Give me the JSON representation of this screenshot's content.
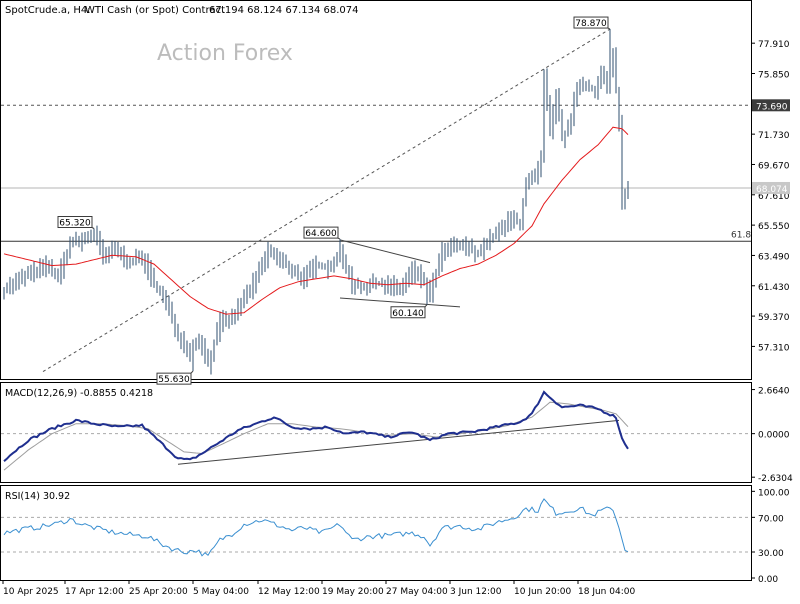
{
  "header": {
    "symbol": "SpotCrude.a, H4:",
    "description": "WTI Cash (or Spot) Contract",
    "ohlc": "67.194 68.124 67.134 68.074"
  },
  "watermark": "Action Forex",
  "colors": {
    "background": "#ffffff",
    "frame": "#000000",
    "price_bars": "#2f4f6f",
    "moving_average": "#e41a1c",
    "macd_line": "#1f2f8f",
    "macd_signal": "#9e9e9e",
    "rsi_line": "#3a8fd0",
    "trendline": "#444444",
    "label_bg": "#3c3c3c"
  },
  "chart_data": [
    {
      "type": "ohlc",
      "title": "SpotCrude.a, H4: WTI Cash (or Spot) Contract",
      "ylim": [
        55.3,
        80.3
      ],
      "y_ticks": [
        "77.910",
        "75.850",
        "73.690",
        "71.730",
        "69.670",
        "67.610",
        "65.550",
        "63.490",
        "61.430",
        "59.370",
        "57.310"
      ],
      "x_ticks": [
        "10 Apr 2025",
        "17 Apr 12:00",
        "25 Apr 20:00",
        "5 May 04:00",
        "12 May 12:00",
        "19 May 20:00",
        "27 May 04:00",
        "3 Jun 12:00",
        "10 Jun 20:00",
        "18 Jun 04:00"
      ],
      "current_price": "68.074",
      "horizontal_levels": [
        {
          "value": 73.69,
          "label": "73.690",
          "style": "dashed"
        },
        {
          "value": 68.074,
          "label": "68.074",
          "style": "solid-gray"
        },
        {
          "value": 64.45,
          "label": "61.8",
          "style": "solid"
        }
      ],
      "swing_labels": [
        {
          "label": "78.870",
          "value": 78.87,
          "bar": 202
        },
        {
          "label": "65.320",
          "value": 65.32,
          "bar": 30
        },
        {
          "label": "64.600",
          "value": 64.6,
          "bar": 112
        },
        {
          "label": "60.140",
          "value": 60.14,
          "bar": 141
        },
        {
          "label": "55.630",
          "value": 55.63,
          "bar": 63
        }
      ],
      "series": [
        {
          "name": "Close",
          "anchors": [
            [
              0,
              61.2
            ],
            [
              8,
              62.2
            ],
            [
              14,
              62.8
            ],
            [
              18,
              62.0
            ],
            [
              22,
              64.3
            ],
            [
              26,
              64.5
            ],
            [
              30,
              65.0
            ],
            [
              33,
              63.4
            ],
            [
              37,
              63.9
            ],
            [
              42,
              63.0
            ],
            [
              46,
              63.4
            ],
            [
              50,
              61.6
            ],
            [
              54,
              60.2
            ],
            [
              58,
              58.1
            ],
            [
              62,
              57.0
            ],
            [
              65,
              57.9
            ],
            [
              68,
              56.1
            ],
            [
              72,
              59.0
            ],
            [
              76,
              59.2
            ],
            [
              80,
              60.6
            ],
            [
              84,
              61.9
            ],
            [
              88,
              63.8
            ],
            [
              92,
              63.1
            ],
            [
              96,
              62.5
            ],
            [
              100,
              61.9
            ],
            [
              104,
              62.9
            ],
            [
              108,
              62.6
            ],
            [
              112,
              63.7
            ],
            [
              116,
              61.6
            ],
            [
              120,
              61.3
            ],
            [
              124,
              61.6
            ],
            [
              128,
              61.5
            ],
            [
              132,
              61.2
            ],
            [
              136,
              62.5
            ],
            [
              139,
              62.0
            ],
            [
              142,
              60.9
            ],
            [
              146,
              63.7
            ],
            [
              150,
              64.1
            ],
            [
              154,
              64.1
            ],
            [
              158,
              63.6
            ],
            [
              161,
              64.4
            ],
            [
              165,
              65.1
            ],
            [
              169,
              66.0
            ],
            [
              172,
              65.7
            ],
            [
              174,
              68.5
            ],
            [
              177,
              68.7
            ],
            [
              179,
              70.0
            ],
            [
              180,
              75.5
            ],
            [
              182,
              72.0
            ],
            [
              184,
              74.2
            ],
            [
              186,
              71.5
            ],
            [
              188,
              72.0
            ],
            [
              190,
              73.9
            ],
            [
              192,
              75.2
            ],
            [
              194,
              75.0
            ],
            [
              197,
              74.7
            ],
            [
              199,
              75.8
            ],
            [
              201,
              75.2
            ],
            [
              203,
              77.0
            ],
            [
              205,
              72.5
            ],
            [
              206,
              67.0
            ],
            [
              208,
              68.1
            ]
          ]
        },
        {
          "name": "MA",
          "anchors": [
            [
              0,
              63.6
            ],
            [
              8,
              63.2
            ],
            [
              16,
              62.8
            ],
            [
              24,
              62.9
            ],
            [
              30,
              63.2
            ],
            [
              36,
              63.5
            ],
            [
              44,
              63.4
            ],
            [
              50,
              62.9
            ],
            [
              56,
              61.8
            ],
            [
              62,
              60.7
            ],
            [
              68,
              59.9
            ],
            [
              74,
              59.5
            ],
            [
              80,
              59.6
            ],
            [
              86,
              60.5
            ],
            [
              92,
              61.3
            ],
            [
              98,
              61.7
            ],
            [
              104,
              61.9
            ],
            [
              110,
              62.1
            ],
            [
              116,
              61.9
            ],
            [
              122,
              61.6
            ],
            [
              128,
              61.5
            ],
            [
              134,
              61.6
            ],
            [
              140,
              61.5
            ],
            [
              146,
              62.1
            ],
            [
              152,
              62.6
            ],
            [
              158,
              62.9
            ],
            [
              164,
              63.5
            ],
            [
              170,
              64.3
            ],
            [
              176,
              65.5
            ],
            [
              180,
              67.0
            ],
            [
              186,
              68.6
            ],
            [
              192,
              70.0
            ],
            [
              198,
              71.0
            ],
            [
              203,
              72.2
            ],
            [
              206,
              72.1
            ],
            [
              208,
              71.7
            ]
          ]
        }
      ]
    },
    {
      "type": "line",
      "title": "MACD(12,26,9) -0.8855 0.4218",
      "ylim": [
        -2.8,
        3.0
      ],
      "y_ticks": [
        "2.6640",
        "0.0000",
        "-2.6304"
      ],
      "series": [
        {
          "name": "MACD",
          "anchors": [
            [
              0,
              -1.6
            ],
            [
              8,
              -0.4
            ],
            [
              16,
              0.3
            ],
            [
              24,
              0.8
            ],
            [
              30,
              0.6
            ],
            [
              38,
              0.4
            ],
            [
              46,
              0.5
            ],
            [
              52,
              -0.5
            ],
            [
              58,
              -1.5
            ],
            [
              62,
              -1.6
            ],
            [
              66,
              -1.2
            ],
            [
              72,
              -0.5
            ],
            [
              78,
              0.2
            ],
            [
              84,
              0.6
            ],
            [
              90,
              1.0
            ],
            [
              96,
              0.4
            ],
            [
              102,
              0.3
            ],
            [
              108,
              0.4
            ],
            [
              114,
              0.0
            ],
            [
              120,
              0.1
            ],
            [
              128,
              -0.2
            ],
            [
              136,
              0.1
            ],
            [
              142,
              -0.4
            ],
            [
              148,
              0.0
            ],
            [
              156,
              0.1
            ],
            [
              164,
              0.4
            ],
            [
              172,
              0.7
            ],
            [
              176,
              1.2
            ],
            [
              180,
              2.5
            ],
            [
              186,
              1.6
            ],
            [
              192,
              1.7
            ],
            [
              198,
              1.5
            ],
            [
              204,
              1.0
            ],
            [
              206,
              -0.3
            ],
            [
              208,
              -0.88
            ]
          ]
        },
        {
          "name": "Signal",
          "anchors": [
            [
              0,
              -2.2
            ],
            [
              8,
              -1.0
            ],
            [
              16,
              0.0
            ],
            [
              24,
              0.6
            ],
            [
              32,
              0.6
            ],
            [
              40,
              0.5
            ],
            [
              48,
              0.3
            ],
            [
              54,
              -0.4
            ],
            [
              60,
              -1.1
            ],
            [
              66,
              -1.2
            ],
            [
              72,
              -0.7
            ],
            [
              80,
              0.0
            ],
            [
              88,
              0.6
            ],
            [
              96,
              0.6
            ],
            [
              104,
              0.4
            ],
            [
              112,
              0.3
            ],
            [
              120,
              0.1
            ],
            [
              128,
              -0.1
            ],
            [
              136,
              0.0
            ],
            [
              144,
              -0.2
            ],
            [
              152,
              0.0
            ],
            [
              160,
              0.2
            ],
            [
              168,
              0.5
            ],
            [
              176,
              1.0
            ],
            [
              182,
              1.9
            ],
            [
              188,
              1.8
            ],
            [
              194,
              1.6
            ],
            [
              200,
              1.4
            ],
            [
              204,
              1.2
            ],
            [
              208,
              0.42
            ]
          ]
        }
      ]
    },
    {
      "type": "line",
      "title": "RSI(14) 30.92",
      "ylim": [
        0,
        105
      ],
      "y_ticks": [
        "100.00",
        "70.00",
        "30.00",
        "0.00"
      ],
      "series": [
        {
          "name": "RSI",
          "anchors": [
            [
              0,
              52
            ],
            [
              6,
              56
            ],
            [
              12,
              59
            ],
            [
              18,
              63
            ],
            [
              22,
              68
            ],
            [
              26,
              62
            ],
            [
              30,
              58
            ],
            [
              36,
              53
            ],
            [
              42,
              50
            ],
            [
              48,
              48
            ],
            [
              52,
              40
            ],
            [
              56,
              34
            ],
            [
              60,
              30
            ],
            [
              64,
              32
            ],
            [
              68,
              25
            ],
            [
              72,
              44
            ],
            [
              76,
              51
            ],
            [
              80,
              62
            ],
            [
              86,
              67
            ],
            [
              92,
              60
            ],
            [
              96,
              55
            ],
            [
              100,
              58
            ],
            [
              106,
              52
            ],
            [
              112,
              62
            ],
            [
              116,
              44
            ],
            [
              122,
              48
            ],
            [
              128,
              49
            ],
            [
              136,
              52
            ],
            [
              140,
              48
            ],
            [
              142,
              38
            ],
            [
              146,
              58
            ],
            [
              152,
              60
            ],
            [
              158,
              56
            ],
            [
              164,
              64
            ],
            [
              170,
              70
            ],
            [
              174,
              80
            ],
            [
              178,
              78
            ],
            [
              180,
              90
            ],
            [
              184,
              75
            ],
            [
              188,
              77
            ],
            [
              192,
              81
            ],
            [
              196,
              72
            ],
            [
              200,
              79
            ],
            [
              203,
              80
            ],
            [
              205,
              58
            ],
            [
              207,
              34
            ],
            [
              208,
              30.9
            ]
          ]
        }
      ]
    }
  ]
}
